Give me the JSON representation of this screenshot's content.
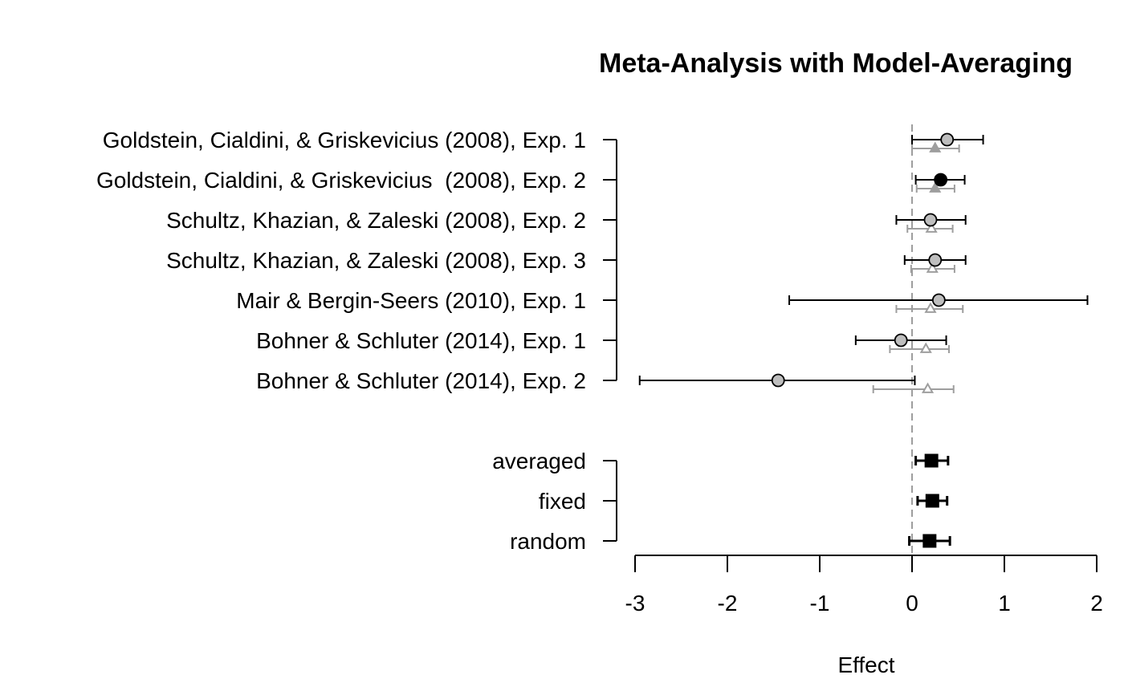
{
  "chart_data": {
    "type": "forest",
    "title": "Meta-Analysis with Model-Averaging",
    "xlabel": "Effect",
    "xlim": [
      -3,
      2
    ],
    "xticks": [
      -3,
      -2,
      -1,
      0,
      1,
      2
    ],
    "xtick_labels": [
      "-3",
      "-2",
      "-1",
      "0",
      "1",
      "2"
    ],
    "reference_line": 0,
    "studies": [
      {
        "label": "Goldstein, Cialdini, & Griskevicius (2008), Exp. 1",
        "observed": {
          "est": 0.38,
          "lo": 0.0,
          "hi": 0.77,
          "fill": "#bebebe"
        },
        "estimated": {
          "est": 0.25,
          "lo": 0.0,
          "hi": 0.51,
          "fill": "#9e9e9e"
        }
      },
      {
        "label": "Goldstein, Cialdini, & Griskevicius  (2008), Exp. 2",
        "observed": {
          "est": 0.31,
          "lo": 0.04,
          "hi": 0.57,
          "fill": "#000000"
        },
        "estimated": {
          "est": 0.25,
          "lo": 0.05,
          "hi": 0.46,
          "fill": "#9e9e9e"
        }
      },
      {
        "label": "Schultz, Khazian, & Zaleski (2008), Exp. 2",
        "observed": {
          "est": 0.2,
          "lo": -0.17,
          "hi": 0.58,
          "fill": "#bebebe"
        },
        "estimated": {
          "est": 0.21,
          "lo": -0.05,
          "hi": 0.44,
          "fill": "#ffffff"
        }
      },
      {
        "label": "Schultz, Khazian, & Zaleski (2008), Exp. 3",
        "observed": {
          "est": 0.25,
          "lo": -0.08,
          "hi": 0.58,
          "fill": "#bebebe"
        },
        "estimated": {
          "est": 0.22,
          "lo": -0.01,
          "hi": 0.46,
          "fill": "#ffffff"
        }
      },
      {
        "label": "Mair & Bergin-Seers (2010), Exp. 1",
        "observed": {
          "est": 0.29,
          "lo": -1.33,
          "hi": 1.9,
          "fill": "#bebebe"
        },
        "estimated": {
          "est": 0.2,
          "lo": -0.17,
          "hi": 0.55,
          "fill": "#ffffff"
        }
      },
      {
        "label": "Bohner & Schluter (2014), Exp. 1",
        "observed": {
          "est": -0.12,
          "lo": -0.61,
          "hi": 0.37,
          "fill": "#bebebe"
        },
        "estimated": {
          "est": 0.15,
          "lo": -0.24,
          "hi": 0.4,
          "fill": "#ffffff"
        }
      },
      {
        "label": "Bohner & Schluter (2014), Exp. 2",
        "observed": {
          "est": -1.45,
          "lo": -2.95,
          "hi": 0.03,
          "fill": "#bebebe"
        },
        "estimated": {
          "est": 0.17,
          "lo": -0.42,
          "hi": 0.45,
          "fill": "#ffffff"
        }
      }
    ],
    "summaries": [
      {
        "label": "averaged",
        "est": 0.21,
        "lo": 0.04,
        "hi": 0.39
      },
      {
        "label": "fixed",
        "est": 0.22,
        "lo": 0.06,
        "hi": 0.38
      },
      {
        "label": "random",
        "est": 0.19,
        "lo": -0.03,
        "hi": 0.41
      }
    ]
  },
  "colors": {
    "ink": "#000000",
    "gray": "#9e9e9e",
    "refline": "#9e9e9e"
  }
}
